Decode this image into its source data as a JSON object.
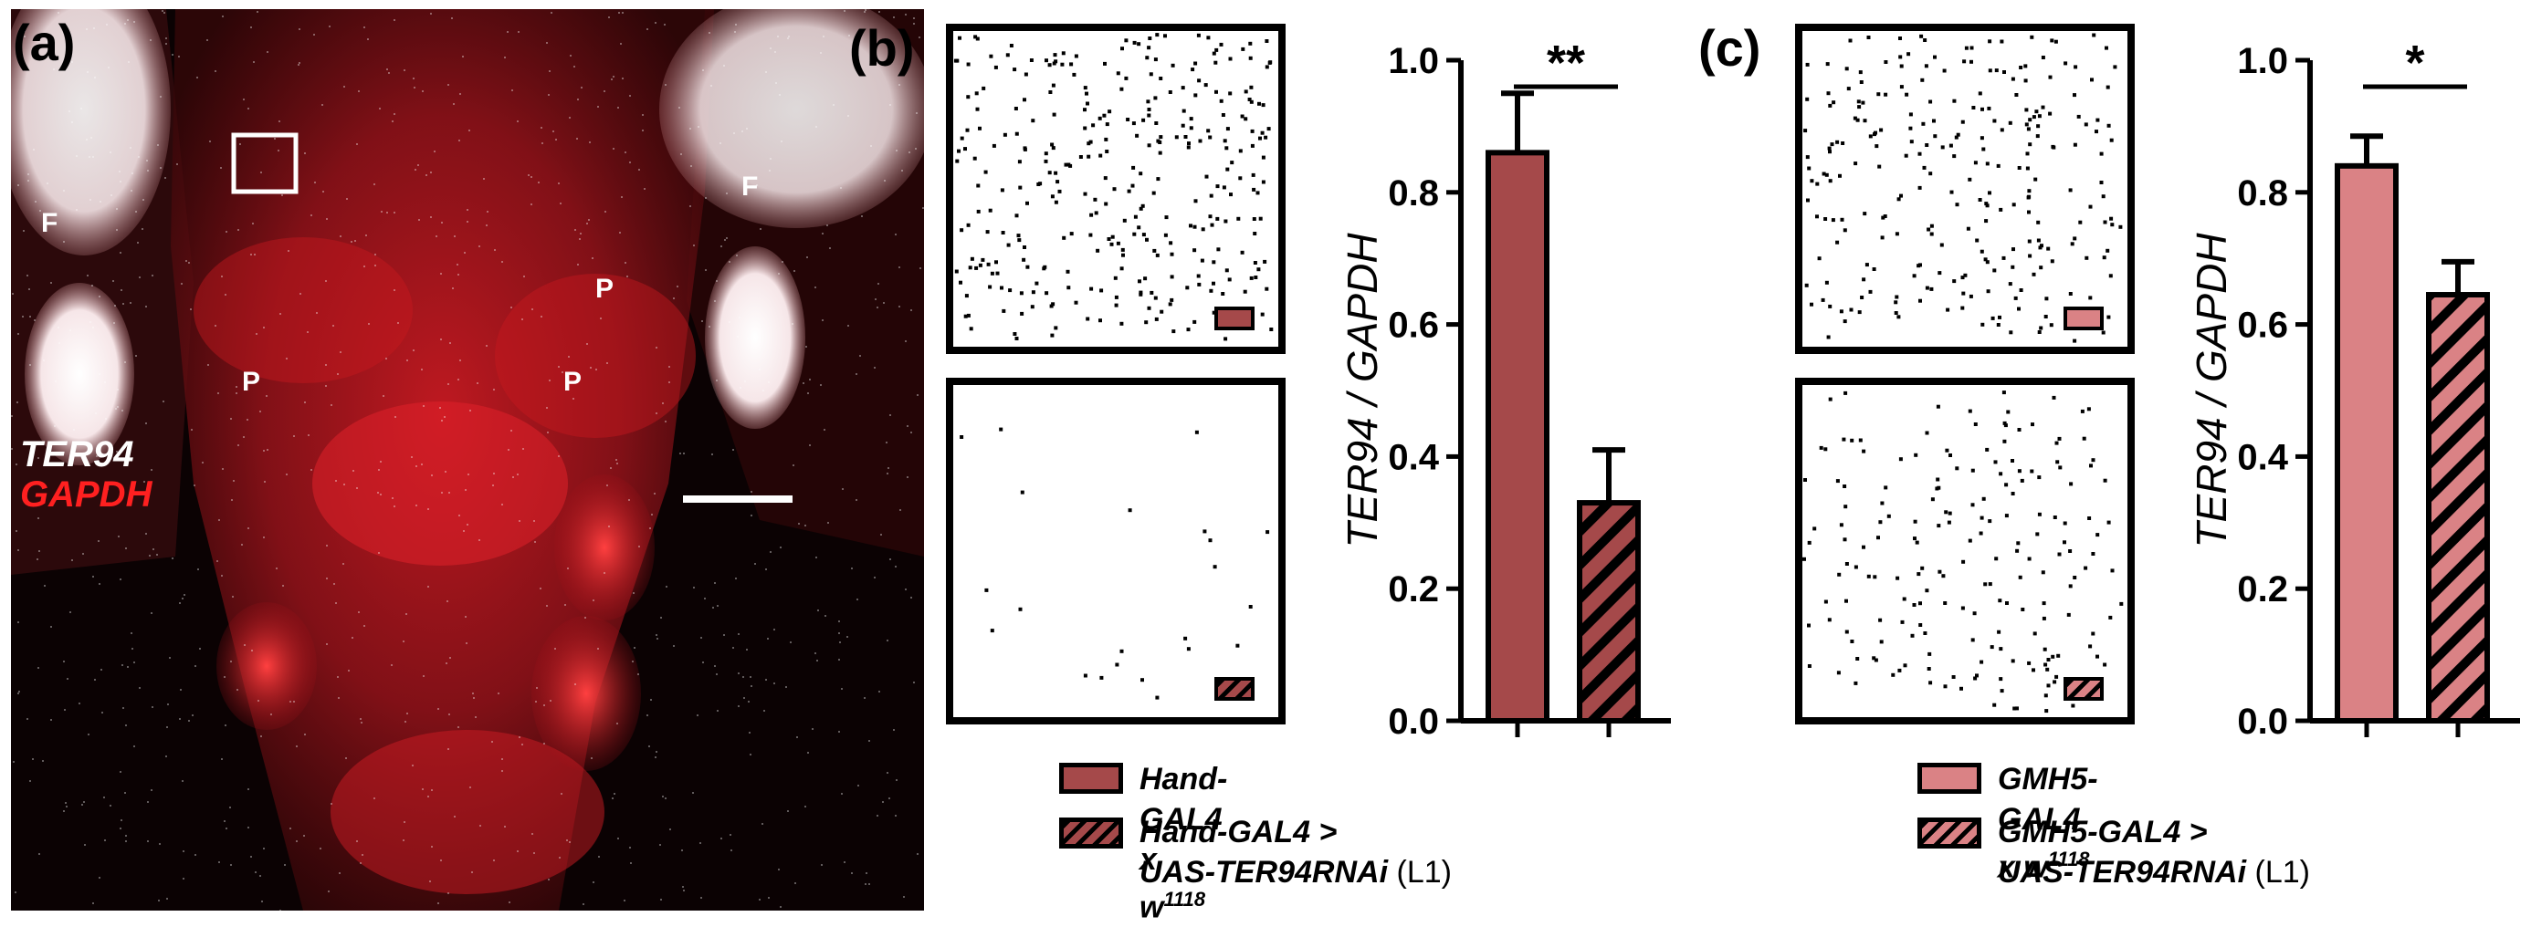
{
  "panels": {
    "a": {
      "letter": "(a)",
      "labels": {
        "F": "F",
        "P": "P"
      },
      "stain_white": "TER94",
      "stain_red": "GAPDH"
    },
    "b": {
      "letter": "(b)"
    },
    "c": {
      "letter": "(c)"
    }
  },
  "colors": {
    "bar_b": "#a5494a",
    "bar_c": "#da8285",
    "stain_red": "#ff2020",
    "stain_white": "#ffffff"
  },
  "chart_data": [
    {
      "type": "bar",
      "panel": "b",
      "ylabel": "TER94 / GAPDH",
      "ylim": [
        0,
        1.0
      ],
      "yticks": [
        "0.0",
        "0.2",
        "0.4",
        "0.6",
        "0.8",
        "1.0"
      ],
      "categories": [
        "Hand-GAL4 x w1118",
        "Hand-GAL4 > UAS-TER94RNAi (L1)"
      ],
      "values": [
        0.86,
        0.33
      ],
      "errors": [
        0.09,
        0.08
      ],
      "patterns": [
        "solid",
        "hatched"
      ],
      "significance": "**"
    },
    {
      "type": "bar",
      "panel": "c",
      "ylabel": "TER94 / GAPDH",
      "ylim": [
        0,
        1.0
      ],
      "yticks": [
        "0.0",
        "0.2",
        "0.4",
        "0.6",
        "0.8",
        "1.0"
      ],
      "categories": [
        "GMH5-GAL4 x w1118",
        "GMH5-GAL4 > UAS-TER94RNAi (L1)"
      ],
      "values": [
        0.84,
        0.645
      ],
      "errors": [
        0.045,
        0.05
      ],
      "patterns": [
        "solid",
        "hatched"
      ],
      "significance": "*"
    }
  ],
  "legends": {
    "b": [
      {
        "text": "Hand-GAL4 x w",
        "sup": "1118",
        "style": "solid"
      },
      {
        "text": "Hand-GAL4 >",
        "line2": "UAS-TER94RNAi",
        "line2_suffix": " (L1)",
        "style": "hatched"
      }
    ],
    "c": [
      {
        "text": "GMH5-GAL4 x w",
        "sup": "1118",
        "style": "solid"
      },
      {
        "text": "GMH5-GAL4 >",
        "line2": "UAS-TER94RNAi",
        "line2_suffix": " (L1)",
        "style": "hatched"
      }
    ]
  }
}
